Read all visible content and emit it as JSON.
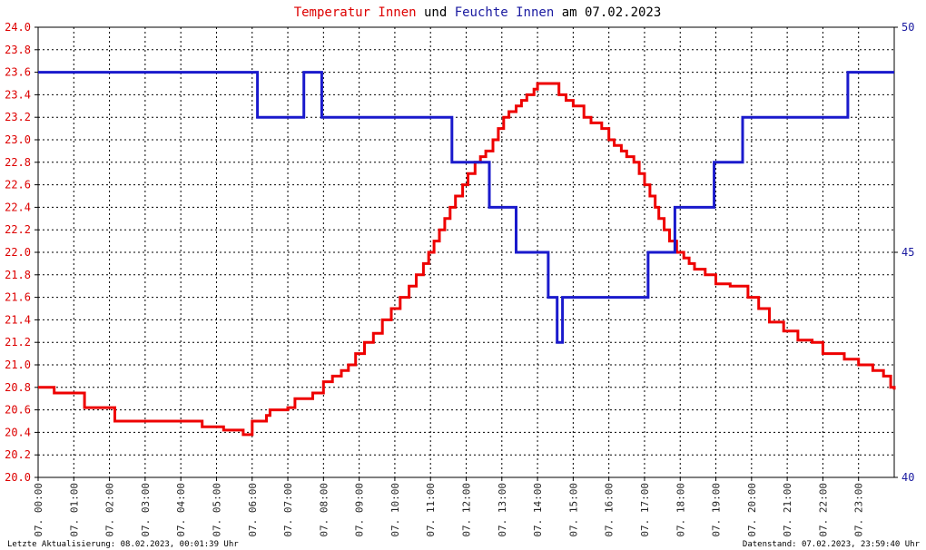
{
  "chart_data": {
    "type": "line",
    "title": {
      "parts": [
        {
          "text": "Temperatur Innen",
          "color": "#dd0000"
        },
        {
          "text": " und ",
          "color": "#000000"
        },
        {
          "text": "Feuchte Innen",
          "color": "#1a1aa0"
        },
        {
          "text": " am 07.02.2023",
          "color": "#000000"
        }
      ]
    },
    "x_ticks": [
      "07. 00:00",
      "07. 01:00",
      "07. 02:00",
      "07. 03:00",
      "07. 04:00",
      "07. 05:00",
      "07. 06:00",
      "07. 07:00",
      "07. 08:00",
      "07. 09:00",
      "07. 10:00",
      "07. 11:00",
      "07. 12:00",
      "07. 13:00",
      "07. 14:00",
      "07. 15:00",
      "07. 16:00",
      "07. 17:00",
      "07. 18:00",
      "07. 19:00",
      "07. 20:00",
      "07. 21:00",
      "07. 22:00",
      "07. 23:00"
    ],
    "x_range_hours": [
      0,
      24
    ],
    "y_left": {
      "ylim": [
        20.0,
        24.0
      ],
      "ticks": [
        "20.0",
        "20.2",
        "20.4",
        "20.6",
        "20.8",
        "21.0",
        "21.2",
        "21.4",
        "21.6",
        "21.8",
        "22.0",
        "22.2",
        "22.4",
        "22.6",
        "22.8",
        "23.0",
        "23.2",
        "23.4",
        "23.6",
        "23.8",
        "24.0"
      ],
      "color": "#dd0000"
    },
    "y_right": {
      "ylim": [
        40,
        50
      ],
      "ticks": [
        "40",
        "45",
        "50"
      ],
      "color": "#1a1aa0"
    },
    "grid": true,
    "series": [
      {
        "name": "Temperatur Innen",
        "axis": "left",
        "color": "#ee0000",
        "points": [
          [
            0.0,
            20.8
          ],
          [
            0.45,
            20.75
          ],
          [
            0.9,
            20.75
          ],
          [
            1.3,
            20.62
          ],
          [
            2.0,
            20.62
          ],
          [
            2.15,
            20.5
          ],
          [
            3.5,
            20.5
          ],
          [
            4.0,
            20.5
          ],
          [
            4.6,
            20.45
          ],
          [
            5.2,
            20.42
          ],
          [
            5.75,
            20.38
          ],
          [
            6.0,
            20.5
          ],
          [
            6.4,
            20.55
          ],
          [
            6.5,
            20.6
          ],
          [
            7.0,
            20.62
          ],
          [
            7.2,
            20.7
          ],
          [
            7.7,
            20.75
          ],
          [
            8.0,
            20.85
          ],
          [
            8.25,
            20.9
          ],
          [
            8.5,
            20.95
          ],
          [
            8.7,
            21.0
          ],
          [
            8.9,
            21.1
          ],
          [
            9.15,
            21.2
          ],
          [
            9.4,
            21.28
          ],
          [
            9.65,
            21.4
          ],
          [
            9.9,
            21.5
          ],
          [
            10.15,
            21.6
          ],
          [
            10.4,
            21.7
          ],
          [
            10.6,
            21.8
          ],
          [
            10.8,
            21.9
          ],
          [
            10.95,
            22.0
          ],
          [
            11.1,
            22.1
          ],
          [
            11.25,
            22.2
          ],
          [
            11.4,
            22.3
          ],
          [
            11.55,
            22.4
          ],
          [
            11.7,
            22.5
          ],
          [
            11.9,
            22.6
          ],
          [
            12.05,
            22.7
          ],
          [
            12.25,
            22.8
          ],
          [
            12.4,
            22.85
          ],
          [
            12.55,
            22.9
          ],
          [
            12.75,
            23.0
          ],
          [
            12.9,
            23.1
          ],
          [
            13.05,
            23.2
          ],
          [
            13.2,
            23.25
          ],
          [
            13.4,
            23.3
          ],
          [
            13.55,
            23.35
          ],
          [
            13.7,
            23.4
          ],
          [
            13.9,
            23.45
          ],
          [
            14.0,
            23.5
          ],
          [
            14.2,
            23.5
          ],
          [
            14.4,
            23.5
          ],
          [
            14.6,
            23.4
          ],
          [
            14.8,
            23.35
          ],
          [
            15.0,
            23.3
          ],
          [
            15.3,
            23.2
          ],
          [
            15.5,
            23.15
          ],
          [
            15.8,
            23.1
          ],
          [
            16.0,
            23.0
          ],
          [
            16.15,
            22.95
          ],
          [
            16.35,
            22.9
          ],
          [
            16.5,
            22.85
          ],
          [
            16.7,
            22.8
          ],
          [
            16.85,
            22.7
          ],
          [
            17.0,
            22.6
          ],
          [
            17.15,
            22.5
          ],
          [
            17.3,
            22.4
          ],
          [
            17.4,
            22.3
          ],
          [
            17.55,
            22.2
          ],
          [
            17.7,
            22.1
          ],
          [
            17.9,
            22.0
          ],
          [
            18.1,
            21.95
          ],
          [
            18.25,
            21.9
          ],
          [
            18.4,
            21.85
          ],
          [
            18.7,
            21.8
          ],
          [
            19.0,
            21.72
          ],
          [
            19.4,
            21.7
          ],
          [
            19.9,
            21.6
          ],
          [
            20.2,
            21.5
          ],
          [
            20.5,
            21.38
          ],
          [
            20.9,
            21.3
          ],
          [
            21.3,
            21.22
          ],
          [
            21.7,
            21.2
          ],
          [
            22.0,
            21.1
          ],
          [
            22.6,
            21.05
          ],
          [
            23.0,
            21.0
          ],
          [
            23.4,
            20.95
          ],
          [
            23.7,
            20.9
          ],
          [
            23.9,
            20.8
          ],
          [
            24.0,
            20.78
          ]
        ]
      },
      {
        "name": "Feuchte Innen",
        "axis": "right",
        "color": "#1a1acc",
        "points": [
          [
            0.0,
            49.0
          ],
          [
            6.15,
            49.0
          ],
          [
            6.15,
            48.0
          ],
          [
            7.45,
            48.0
          ],
          [
            7.45,
            49.0
          ],
          [
            7.95,
            49.0
          ],
          [
            7.95,
            48.0
          ],
          [
            11.6,
            48.0
          ],
          [
            11.6,
            47.0
          ],
          [
            12.65,
            47.0
          ],
          [
            12.65,
            46.0
          ],
          [
            13.4,
            46.0
          ],
          [
            13.4,
            45.0
          ],
          [
            14.3,
            45.0
          ],
          [
            14.3,
            44.0
          ],
          [
            14.55,
            44.0
          ],
          [
            14.55,
            43.0
          ],
          [
            14.7,
            43.0
          ],
          [
            14.7,
            44.0
          ],
          [
            17.1,
            44.0
          ],
          [
            17.1,
            45.0
          ],
          [
            17.85,
            45.0
          ],
          [
            17.85,
            46.0
          ],
          [
            18.95,
            46.0
          ],
          [
            18.95,
            47.0
          ],
          [
            19.75,
            47.0
          ],
          [
            19.75,
            48.0
          ],
          [
            22.7,
            48.0
          ],
          [
            22.7,
            49.0
          ],
          [
            24.0,
            49.0
          ]
        ]
      }
    ],
    "footer_left": "Letzte Aktualisierung: 08.02.2023, 00:01:39 Uhr",
    "footer_right": "Datenstand: 07.02.2023, 23:59:40 Uhr"
  }
}
